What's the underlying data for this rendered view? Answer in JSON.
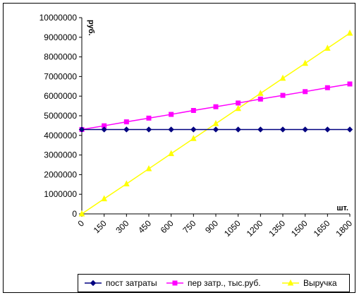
{
  "chart_data": {
    "type": "line",
    "x": [
      0,
      150,
      300,
      450,
      600,
      750,
      900,
      1050,
      1200,
      1350,
      1500,
      1650,
      1800
    ],
    "x_tick_labels": [
      "0",
      "150",
      "300",
      "450",
      "600",
      "750",
      "900",
      "1050",
      "1200",
      "1350",
      "1500",
      "1650",
      "1800"
    ],
    "ylim": [
      0,
      10000000
    ],
    "y_ticks": [
      0,
      1000000,
      2000000,
      3000000,
      4000000,
      5000000,
      6000000,
      7000000,
      8000000,
      9000000,
      10000000
    ],
    "y_tick_labels": [
      "0",
      "1000000",
      "2000000",
      "3000000",
      "4000000",
      "5000000",
      "6000000",
      "7000000",
      "8000000",
      "9000000",
      "10000000"
    ],
    "ylabel": "руб.",
    "xlabel": "шт.",
    "grid": false,
    "legend_position": "bottom",
    "series": [
      {
        "name": "пост затраты",
        "color": "#000080",
        "marker": "diamond",
        "values": [
          4300000,
          4300000,
          4300000,
          4300000,
          4300000,
          4300000,
          4300000,
          4300000,
          4300000,
          4300000,
          4300000,
          4300000,
          4300000
        ]
      },
      {
        "name": "пер затр., тыс.руб.",
        "color": "#FF00FF",
        "marker": "square",
        "values": [
          4300000,
          4490000,
          4690000,
          4880000,
          5070000,
          5270000,
          5460000,
          5650000,
          5850000,
          6040000,
          6230000,
          6430000,
          6620000
        ]
      },
      {
        "name": "Выручка",
        "color": "#FFFF00",
        "marker": "triangle",
        "values": [
          0,
          770000,
          1530000,
          2300000,
          3070000,
          3840000,
          4600000,
          5370000,
          6140000,
          6910000,
          7670000,
          8440000,
          9210000
        ]
      }
    ]
  }
}
